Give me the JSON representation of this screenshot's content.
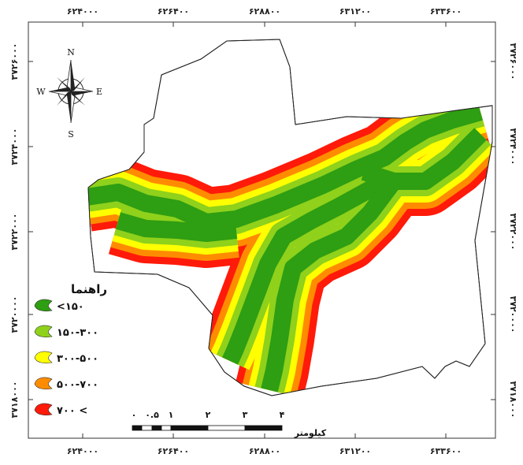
{
  "map": {
    "x_ticks_top": [
      "۶۲۴۰۰۰",
      "۶۲۶۴۰۰",
      "۶۲۸۸۰۰",
      "۶۳۱۲۰۰",
      "۶۳۳۶۰۰"
    ],
    "x_ticks_bottom": [
      "۶۲۴۰۰۰",
      "۶۲۶۴۰۰",
      "۶۲۸۸۰۰",
      "۶۳۱۲۰۰",
      "۶۳۳۶۰۰"
    ],
    "y_ticks": [
      "۳۷۲۶۰۰۰",
      "۳۷۲۴۰۰۰",
      "۳۷۲۲۰۰۰",
      "۳۷۲۰۰۰۰",
      "۳۷۱۸۰۰۰"
    ],
    "compass": {
      "n": "N",
      "s": "S",
      "e": "E",
      "w": "W"
    },
    "legend": {
      "title": "راهنما",
      "items": [
        {
          "label": "<۱۵۰",
          "color": "#2e9e12"
        },
        {
          "label": "۱۵۰-۳۰۰",
          "color": "#8fd11b"
        },
        {
          "label": "۳۰۰-۵۰۰",
          "color": "#ffff00"
        },
        {
          "label": "۵۰۰-۷۰۰",
          "color": "#ff8c00"
        },
        {
          "label": "۷۰۰ <",
          "color": "#ff1a0a"
        }
      ]
    },
    "scale": {
      "labels": [
        "۰",
        "۰.۵",
        "۱",
        "۲",
        "۳",
        "۴"
      ],
      "unit": "کیلومتر"
    },
    "buffer_colors": [
      "#ff1a0a",
      "#ff8c00",
      "#ffff00",
      "#8fd11b",
      "#2e9e12"
    ]
  }
}
